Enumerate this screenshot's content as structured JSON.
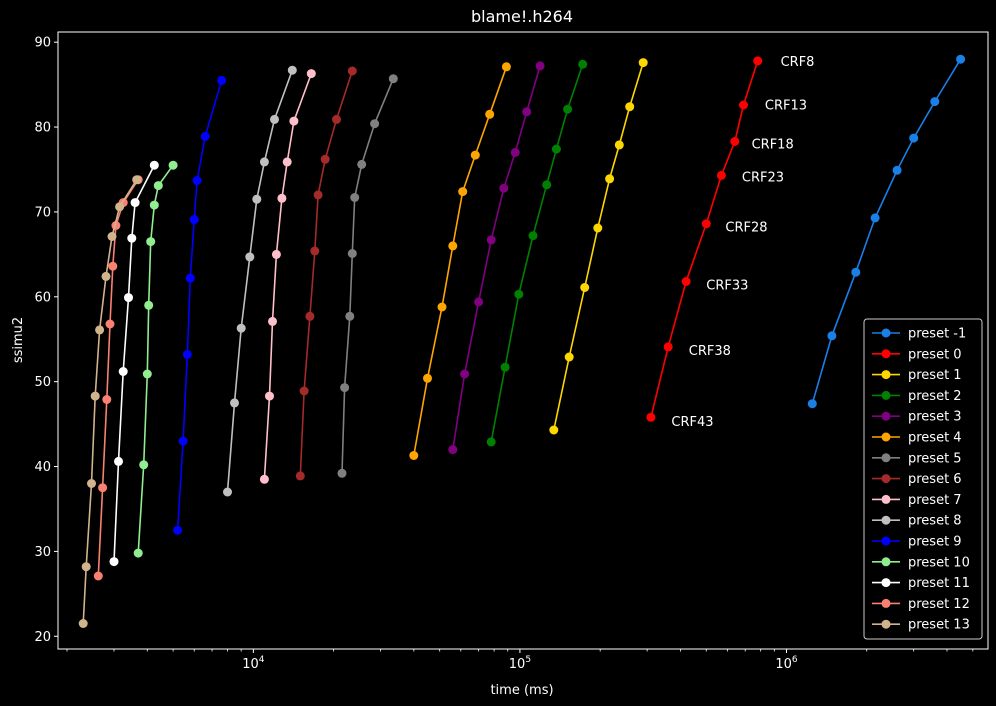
{
  "chart_data": {
    "type": "line",
    "title": "blame!.h264",
    "xlabel": "time (ms)",
    "ylabel": "ssimu2",
    "xscale": "log",
    "xlim": [
      1850,
      5700000
    ],
    "ylim": [
      18.5,
      91.2
    ],
    "xticks": [
      {
        "value": 10000,
        "base": "10",
        "exp": "4"
      },
      {
        "value": 100000,
        "base": "10",
        "exp": "5"
      },
      {
        "value": 1000000,
        "base": "10",
        "exp": "6"
      }
    ],
    "yticks": [
      20,
      30,
      40,
      50,
      60,
      70,
      80,
      90
    ],
    "legend_position": "lower-right",
    "series": [
      {
        "name": "preset -1",
        "color": "#1a7fe6",
        "x": [
          1250000,
          1480000,
          1820000,
          2150000,
          2600000,
          3000000,
          3600000,
          4500000
        ],
        "y": [
          47.4,
          55.4,
          62.9,
          69.3,
          74.9,
          78.7,
          83.0,
          88.0
        ]
      },
      {
        "name": "preset 0",
        "color": "#ff0000",
        "x": [
          310000,
          360000,
          420000,
          500000,
          570000,
          640000,
          690000,
          780000
        ],
        "y": [
          45.8,
          54.1,
          61.8,
          68.6,
          74.3,
          78.3,
          82.6,
          87.8
        ]
      },
      {
        "name": "preset 1",
        "color": "#ffd700",
        "x": [
          134000,
          153000,
          175000,
          196000,
          217000,
          236000,
          258000,
          290000
        ],
        "y": [
          44.3,
          52.9,
          61.1,
          68.1,
          73.9,
          77.9,
          82.4,
          87.6
        ]
      },
      {
        "name": "preset 2",
        "color": "#008000",
        "x": [
          78000,
          88000,
          99000,
          112000,
          126000,
          137000,
          151000,
          172000
        ],
        "y": [
          42.9,
          51.7,
          60.3,
          67.2,
          73.2,
          77.4,
          82.1,
          87.4
        ]
      },
      {
        "name": "preset 3",
        "color": "#800080",
        "x": [
          56000,
          62000,
          70000,
          78000,
          87000,
          96000,
          106000,
          119000
        ],
        "y": [
          42.0,
          50.9,
          59.4,
          66.7,
          72.8,
          77.0,
          81.8,
          87.2
        ]
      },
      {
        "name": "preset 4",
        "color": "#ffa500",
        "x": [
          40000,
          45000,
          51000,
          56000,
          61000,
          68000,
          77000,
          89000
        ],
        "y": [
          41.3,
          50.4,
          58.8,
          66.0,
          72.4,
          76.7,
          81.5,
          87.1
        ]
      },
      {
        "name": "preset 5",
        "color": "#808080",
        "x": [
          21500,
          22000,
          23000,
          23500,
          24000,
          25500,
          28500,
          33500
        ],
        "y": [
          39.2,
          49.3,
          57.7,
          65.1,
          71.7,
          75.6,
          80.4,
          85.7
        ]
      },
      {
        "name": "preset 6",
        "color": "#a52a2a",
        "x": [
          15000,
          15500,
          16300,
          17000,
          17500,
          18600,
          20500,
          23500
        ],
        "y": [
          38.9,
          48.9,
          57.7,
          65.4,
          72.0,
          76.2,
          80.9,
          86.6
        ]
      },
      {
        "name": "preset 7",
        "color": "#ffc0cb",
        "x": [
          11000,
          11500,
          11800,
          12200,
          12800,
          13400,
          14200,
          16500
        ],
        "y": [
          38.5,
          48.3,
          57.1,
          65.0,
          71.6,
          75.9,
          80.7,
          86.3
        ]
      },
      {
        "name": "preset 8",
        "color": "#c0c0c0",
        "x": [
          8000,
          8500,
          9000,
          9700,
          10300,
          11000,
          12000,
          14000
        ],
        "y": [
          37.0,
          47.5,
          56.3,
          64.7,
          71.5,
          75.9,
          80.9,
          86.7
        ]
      },
      {
        "name": "preset 9",
        "color": "#0000ff",
        "x": [
          5200,
          5450,
          5650,
          5800,
          6000,
          6150,
          6600,
          7600
        ],
        "y": [
          32.5,
          43.0,
          53.2,
          62.2,
          69.1,
          73.7,
          78.9,
          85.5
        ]
      },
      {
        "name": "preset 10",
        "color": "#90ee90",
        "x": [
          3700,
          3880,
          4000,
          4050,
          4120,
          4250,
          4400,
          5000
        ],
        "y": [
          29.8,
          40.2,
          50.9,
          59.0,
          66.5,
          70.8,
          73.1,
          75.5
        ]
      },
      {
        "name": "preset 11",
        "color": "#ffffff",
        "x": [
          3000,
          3120,
          3250,
          3400,
          3500,
          3600,
          4250
        ],
        "y": [
          28.8,
          40.6,
          51.2,
          59.9,
          66.9,
          71.1,
          75.5
        ]
      },
      {
        "name": "preset 12",
        "color": "#fa8072",
        "x": [
          2620,
          2720,
          2820,
          2900,
          2970,
          3050,
          3250,
          3700
        ],
        "y": [
          27.1,
          37.5,
          47.9,
          56.8,
          63.6,
          68.4,
          71.1,
          73.8
        ]
      },
      {
        "name": "preset 13",
        "color": "#d2b48c",
        "x": [
          2300,
          2360,
          2470,
          2550,
          2650,
          2800,
          2950,
          3150,
          3650
        ],
        "y": [
          21.5,
          28.2,
          38.0,
          48.3,
          56.1,
          62.4,
          67.1,
          70.6,
          73.8
        ]
      }
    ],
    "annotations": [
      {
        "text": "CRF8",
        "x": 950000,
        "y": 87.7
      },
      {
        "text": "CRF13",
        "x": 830000,
        "y": 82.6
      },
      {
        "text": "CRF18",
        "x": 740000,
        "y": 78.0
      },
      {
        "text": "CRF23",
        "x": 680000,
        "y": 74.1
      },
      {
        "text": "CRF28",
        "x": 590000,
        "y": 68.2
      },
      {
        "text": "CRF33",
        "x": 500000,
        "y": 61.4
      },
      {
        "text": "CRF38",
        "x": 430000,
        "y": 53.7
      },
      {
        "text": "CRF43",
        "x": 370000,
        "y": 45.3
      }
    ]
  }
}
